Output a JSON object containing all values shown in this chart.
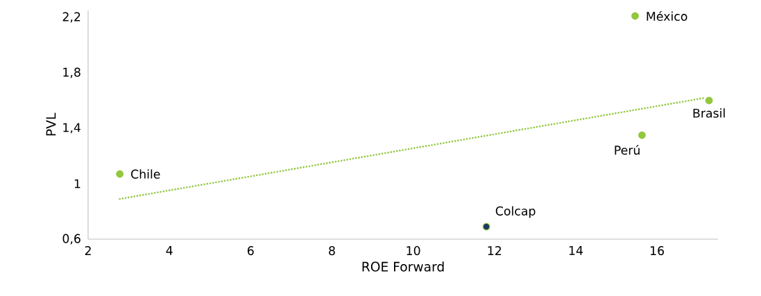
{
  "chart_data": {
    "type": "scatter",
    "xlabel": "ROE Forward",
    "ylabel": "PVL",
    "series": [
      {
        "x": [
          2.78,
          11.8,
          15.63,
          15.46,
          17.28
        ],
        "values": [
          1.07,
          0.69,
          1.35,
          2.21,
          1.6
        ],
        "colors": [
          "#92c83e",
          "#1f3a5f",
          "#92c83e",
          "#92c83e",
          "#92c83e"
        ],
        "color": "#92c83e",
        "marker": "circle"
      },
      {
        "type": "line",
        "x": [
          2.78,
          17.2
        ],
        "values": [
          0.89,
          1.62
        ],
        "color": "#92c83e",
        "line_style": "dotted",
        "marker": "none"
      }
    ],
    "annotations": [
      {
        "text": "Chile",
        "x": 2.78,
        "y": 1.07
      },
      {
        "text": "Colcap",
        "x": 11.8,
        "y": 0.69
      },
      {
        "text": "Perú",
        "x": 15.63,
        "y": 1.35
      },
      {
        "text": "México",
        "x": 15.46,
        "y": 2.21
      },
      {
        "text": "Brasil",
        "x": 17.28,
        "y": 1.6
      }
    ],
    "xlim": [
      2,
      17.5
    ],
    "ylim": [
      0.6,
      2.25
    ],
    "xticks": [
      2,
      4,
      6,
      8,
      10,
      12,
      14,
      16
    ],
    "yticks": [
      {
        "value": 0.6,
        "label": "0,6"
      },
      1,
      {
        "value": 1.4,
        "label": "1,4"
      },
      {
        "value": 1.8,
        "label": "1,8"
      },
      {
        "value": 2.2,
        "label": "2,2"
      }
    ],
    "grid": false
  }
}
